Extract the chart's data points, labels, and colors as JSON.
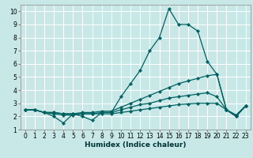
{
  "xlabel": "Humidex (Indice chaleur)",
  "bg_color": "#c8e8e8",
  "grid_color": "#ffffff",
  "line_color": "#006060",
  "series": [
    {
      "x": [
        0,
        1,
        2,
        3,
        4,
        5,
        6,
        7,
        8,
        9,
        10,
        11,
        12,
        13,
        14,
        15,
        16,
        17,
        18,
        19,
        20,
        21,
        22,
        23
      ],
      "y": [
        2.5,
        2.5,
        2.3,
        2.0,
        1.5,
        2.2,
        2.0,
        1.7,
        2.3,
        2.3,
        3.5,
        4.5,
        5.5,
        7.0,
        8.0,
        10.2,
        9.0,
        9.0,
        8.5,
        6.2,
        5.2,
        2.5,
        2.0,
        2.8
      ]
    },
    {
      "x": [
        0,
        1,
        2,
        3,
        4,
        5,
        6,
        7,
        8,
        9,
        10,
        11,
        12,
        13,
        14,
        15,
        16,
        17,
        18,
        19,
        20,
        21,
        22,
        23
      ],
      "y": [
        2.5,
        2.5,
        2.3,
        2.3,
        2.2,
        2.2,
        2.3,
        2.3,
        2.4,
        2.4,
        2.7,
        3.0,
        3.3,
        3.6,
        3.9,
        4.2,
        4.5,
        4.7,
        4.9,
        5.1,
        5.2,
        2.5,
        2.0,
        2.8
      ]
    },
    {
      "x": [
        0,
        1,
        2,
        3,
        4,
        5,
        6,
        7,
        8,
        9,
        10,
        11,
        12,
        13,
        14,
        15,
        16,
        17,
        18,
        19,
        20,
        21,
        22,
        23
      ],
      "y": [
        2.5,
        2.5,
        2.3,
        2.3,
        2.2,
        2.2,
        2.2,
        2.2,
        2.3,
        2.3,
        2.5,
        2.7,
        2.9,
        3.0,
        3.2,
        3.4,
        3.5,
        3.6,
        3.7,
        3.8,
        3.5,
        2.5,
        2.1,
        2.8
      ]
    },
    {
      "x": [
        0,
        1,
        2,
        3,
        4,
        5,
        6,
        7,
        8,
        9,
        10,
        11,
        12,
        13,
        14,
        15,
        16,
        17,
        18,
        19,
        20,
        21,
        22,
        23
      ],
      "y": [
        2.5,
        2.5,
        2.3,
        2.2,
        2.1,
        2.1,
        2.2,
        2.2,
        2.2,
        2.2,
        2.3,
        2.4,
        2.5,
        2.6,
        2.7,
        2.8,
        2.9,
        2.95,
        3.0,
        3.0,
        3.0,
        2.5,
        2.1,
        2.8
      ]
    }
  ],
  "xlim": [
    -0.5,
    23.5
  ],
  "ylim": [
    1,
    10.5
  ],
  "xticks": [
    0,
    1,
    2,
    3,
    4,
    5,
    6,
    7,
    8,
    9,
    10,
    11,
    12,
    13,
    14,
    15,
    16,
    17,
    18,
    19,
    20,
    21,
    22,
    23
  ],
  "yticks": [
    1,
    2,
    3,
    4,
    5,
    6,
    7,
    8,
    9,
    10
  ],
  "marker": "D",
  "marker_size": 2.2,
  "line_width": 0.9,
  "label_fontsize": 6.5,
  "tick_fontsize": 5.5
}
